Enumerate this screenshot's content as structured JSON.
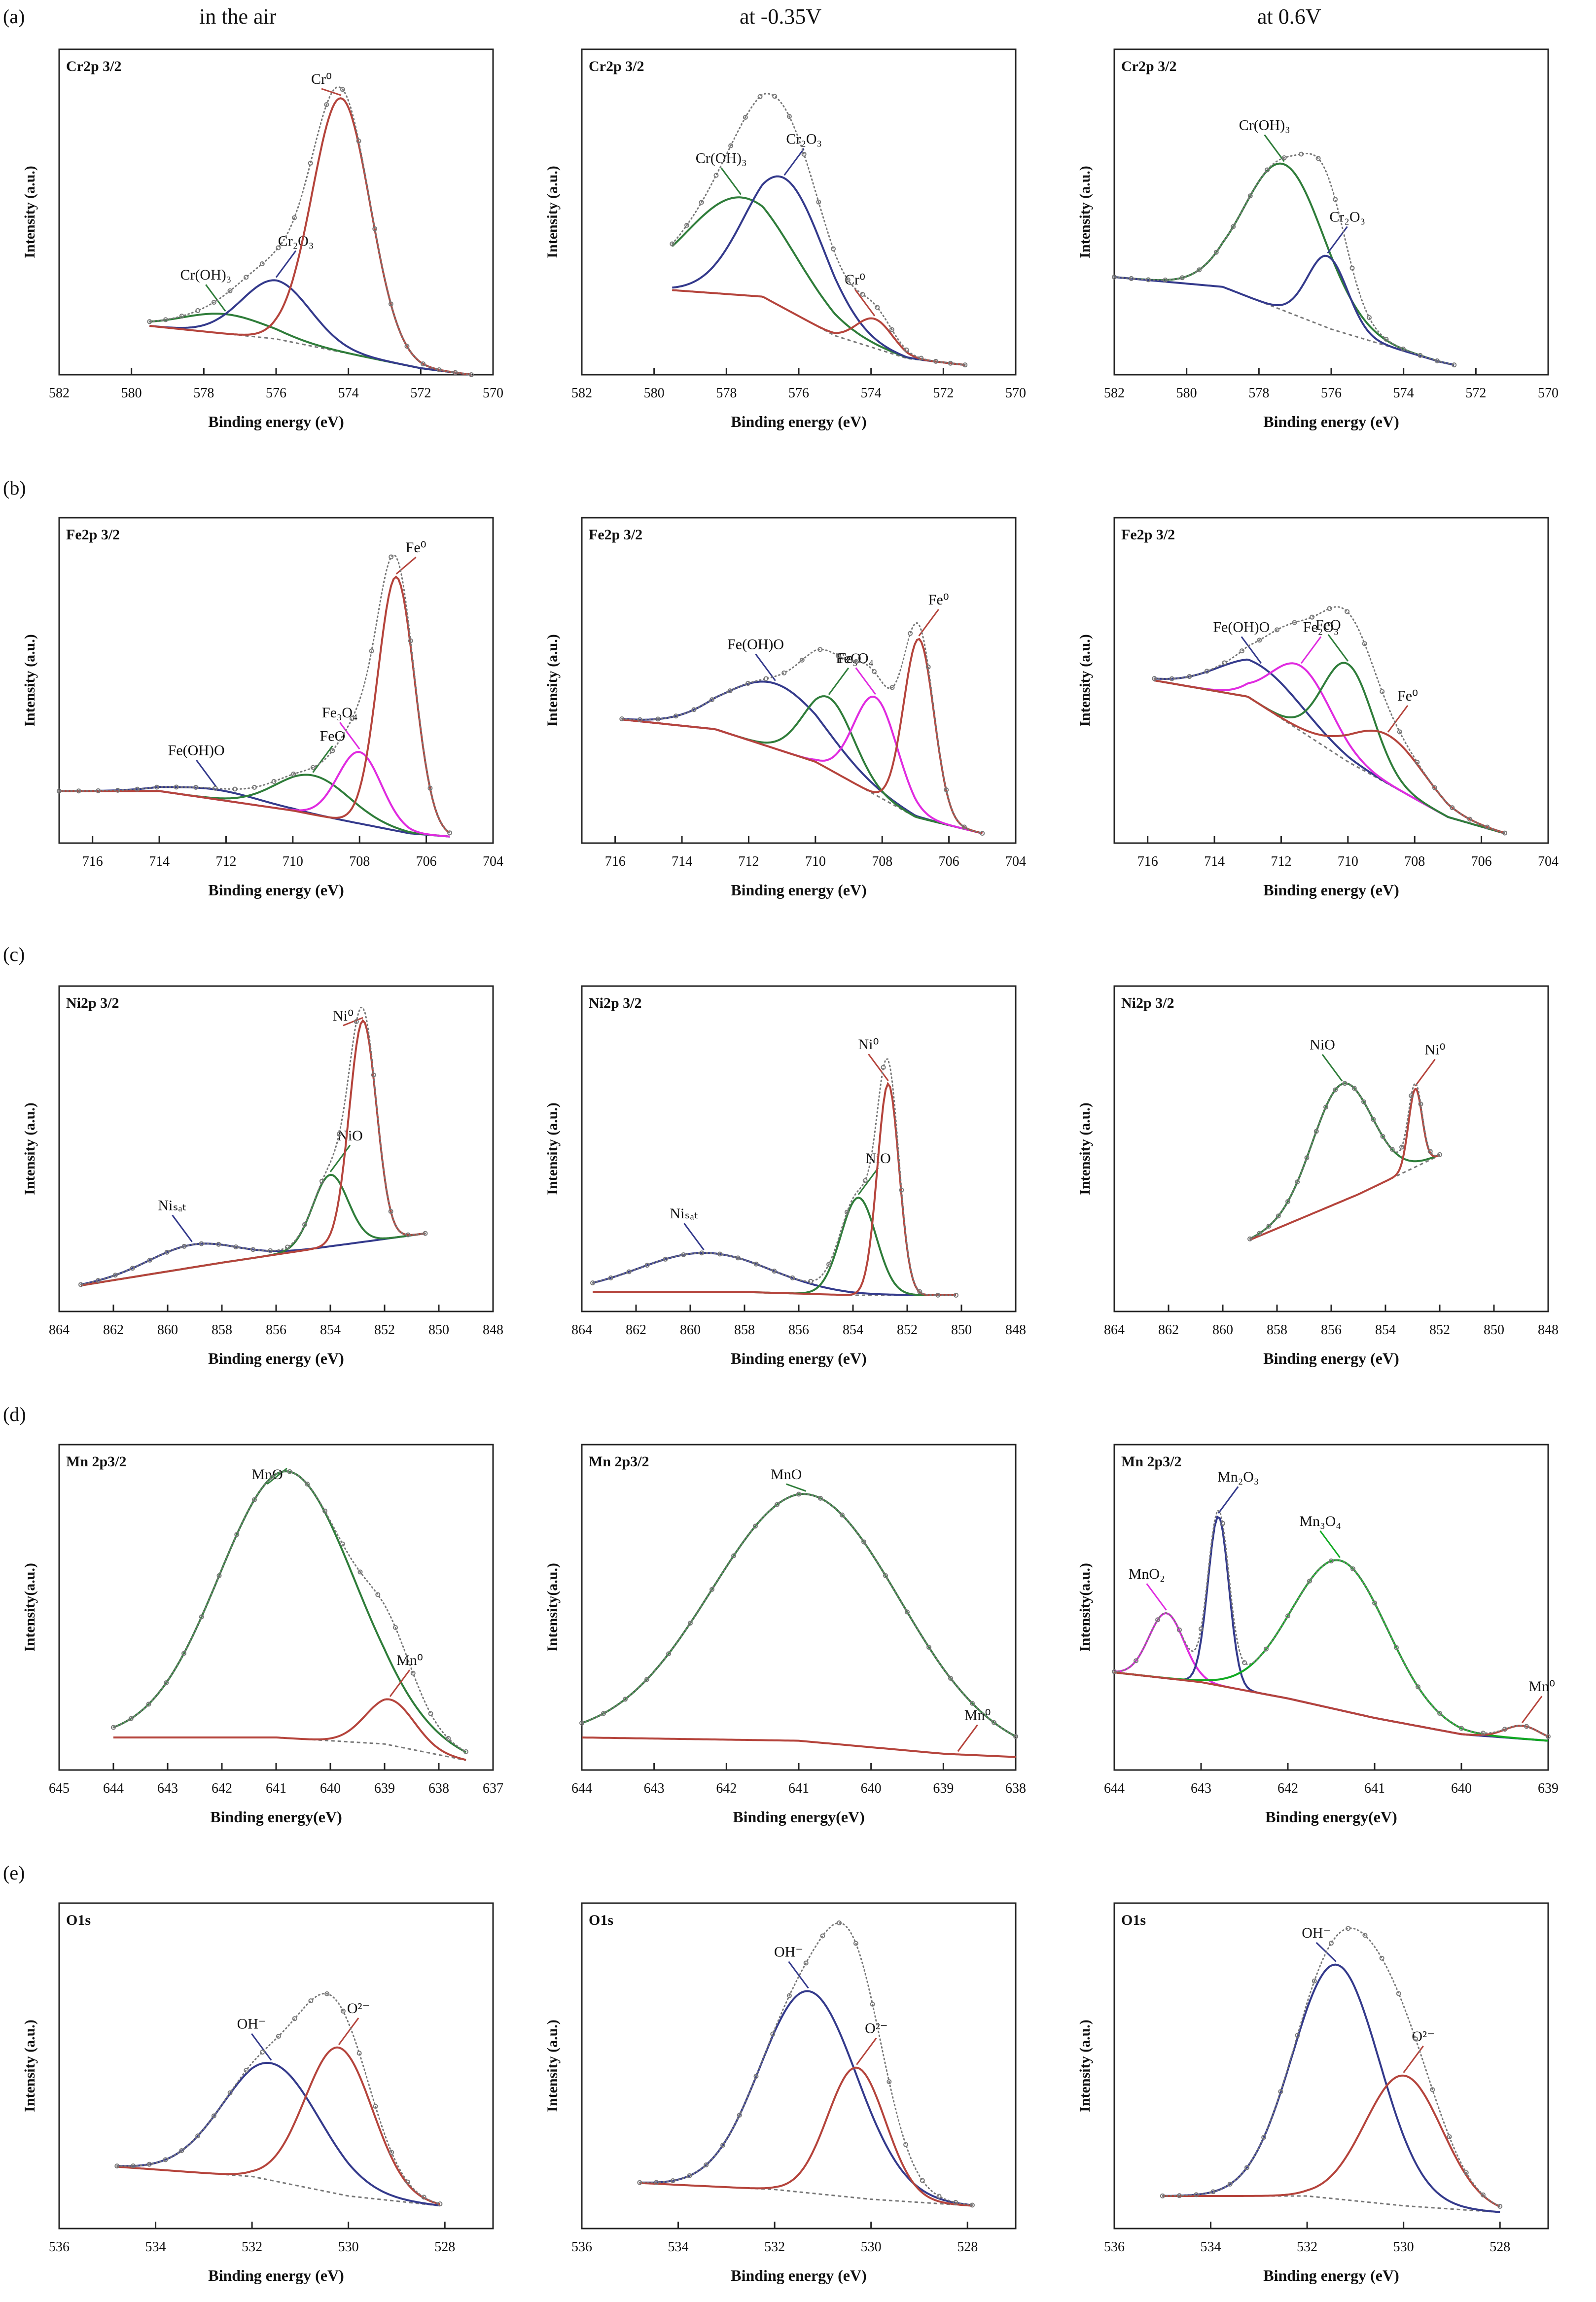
{
  "column_headers": [
    "in the air",
    "at -0.35V",
    "at 0.6V"
  ],
  "row_labels": [
    "(a)",
    "(b)",
    "(c)",
    "(d)",
    "(e)"
  ],
  "colors": {
    "red": "#b5443c",
    "blue": "#343a8c",
    "green": "#2f7d3a",
    "magenta": "#e02be0",
    "gray": "#777777",
    "black": "#111111",
    "lime": "#11aa22",
    "pinkred": "#e8303a",
    "arrow_red": "#c0392b"
  },
  "chart_data": [
    {
      "type": "line",
      "row": 0,
      "col": 0,
      "title": "Cr2p 3/2",
      "xlabel": "Binding energy (eV)",
      "ylabel": "Intensity (a.u.)",
      "xlim": [
        582,
        570
      ],
      "xticks": [
        582,
        580,
        578,
        576,
        574,
        572,
        570
      ],
      "baseline": [
        [
          579.5,
          0.15
        ],
        [
          576,
          0.11
        ],
        [
          572,
          0.02
        ],
        [
          570.6,
          0.0
        ]
      ],
      "peaks": [
        {
          "label": "Cr(OH)₃",
          "center": 577.4,
          "height": 0.06,
          "width": 1.2
        },
        {
          "label": "Cr₂O₃",
          "center": 576.0,
          "height": 0.18,
          "width": 0.95
        },
        {
          "label": "Cr⁰",
          "center": 574.2,
          "height": 0.78,
          "width": 0.8
        }
      ]
    },
    {
      "type": "line",
      "row": 0,
      "col": 1,
      "title": "Cr2p 3/2",
      "xlabel": "Binding energy (eV)",
      "ylabel": "Intensity (a.u.)",
      "xlim": [
        582,
        570
      ],
      "xticks": [
        582,
        580,
        578,
        576,
        574,
        572,
        570
      ],
      "baseline": [
        [
          579.5,
          0.26
        ],
        [
          577,
          0.24
        ],
        [
          575,
          0.12
        ],
        [
          573,
          0.05
        ],
        [
          571.4,
          0.03
        ]
      ],
      "peaks": [
        {
          "label": "Cr(OH)₃",
          "center": 577.6,
          "height": 0.3,
          "width": 1.5
        },
        {
          "label": "Cr₂O₃",
          "center": 576.4,
          "height": 0.4,
          "width": 1.1
        },
        {
          "label": "Cr⁰",
          "center": 573.9,
          "height": 0.09,
          "width": 0.5
        }
      ]
    },
    {
      "type": "line",
      "row": 0,
      "col": 2,
      "title": "Cr2p 3/2",
      "xlabel": "Binding energy (eV)",
      "ylabel": "Intensity (a.u.)",
      "xlim": [
        582,
        570
      ],
      "xticks": [
        582,
        580,
        578,
        576,
        574,
        572,
        570
      ],
      "baseline": [
        [
          582,
          0.3
        ],
        [
          579,
          0.27
        ],
        [
          576,
          0.14
        ],
        [
          573,
          0.04
        ],
        [
          572.6,
          0.03
        ]
      ],
      "peaks": [
        {
          "label": "Cr(OH)₃",
          "center": 577.3,
          "height": 0.45,
          "width": 1.1
        },
        {
          "label": "Cr₂O₃",
          "center": 576.1,
          "height": 0.22,
          "width": 0.55
        }
      ]
    },
    {
      "type": "line",
      "row": 1,
      "col": 0,
      "title": "Fe2p 3/2",
      "xlabel": "Binding energy (eV)",
      "ylabel": "Intensity (a.u.)",
      "xlim": [
        717,
        704
      ],
      "xticks": [
        716,
        714,
        712,
        710,
        708,
        706,
        704
      ],
      "baseline": [
        [
          717,
          0.16
        ],
        [
          714,
          0.16
        ],
        [
          710,
          0.1
        ],
        [
          706.5,
          0.03
        ],
        [
          705.3,
          0.02
        ]
      ],
      "peaks": [
        {
          "label": "Fe(OH)O",
          "center": 712.3,
          "height": 0.03,
          "width": 1.3
        },
        {
          "label": "FeO",
          "center": 709.4,
          "height": 0.12,
          "width": 1.1
        },
        {
          "label": "Fe₃O₄",
          "center": 708.0,
          "height": 0.22,
          "width": 0.65
        },
        {
          "label": "Fe⁰",
          "center": 706.9,
          "height": 0.78,
          "width": 0.55
        }
      ]
    },
    {
      "type": "line",
      "row": 1,
      "col": 1,
      "title": "Fe2p 3/2",
      "xlabel": "Binding energy (eV)",
      "ylabel": "Intensity (a.u.)",
      "xlim": [
        717,
        704
      ],
      "xticks": [
        716,
        714,
        712,
        710,
        708,
        706,
        704
      ],
      "baseline": [
        [
          715.8,
          0.38
        ],
        [
          713,
          0.35
        ],
        [
          710,
          0.25
        ],
        [
          707,
          0.08
        ],
        [
          705,
          0.03
        ]
      ],
      "peaks": [
        {
          "label": "Fe(OH)O",
          "center": 711.2,
          "height": 0.2,
          "width": 1.5
        },
        {
          "label": "FeO",
          "center": 709.6,
          "height": 0.22,
          "width": 0.75
        },
        {
          "label": "Fe₃O₄",
          "center": 708.2,
          "height": 0.3,
          "width": 0.65
        },
        {
          "label": "Fe⁰",
          "center": 706.9,
          "height": 0.55,
          "width": 0.45
        }
      ]
    },
    {
      "type": "line",
      "row": 1,
      "col": 2,
      "title": "Fe2p 3/2",
      "xlabel": "Binding energy (eV)",
      "ylabel": "Intensity (a.u.)",
      "xlim": [
        717,
        704
      ],
      "xticks": [
        716,
        714,
        712,
        710,
        708,
        706,
        704
      ],
      "baseline": [
        [
          715.8,
          0.5
        ],
        [
          713,
          0.45
        ],
        [
          710,
          0.25
        ],
        [
          707,
          0.08
        ],
        [
          705.3,
          0.03
        ]
      ],
      "peaks": [
        {
          "label": "Fe(OH)O",
          "center": 712.6,
          "height": 0.12,
          "width": 1.3
        },
        {
          "label": "Fe₂O₃",
          "center": 711.4,
          "height": 0.2,
          "width": 0.9
        },
        {
          "label": "FeO",
          "center": 710.0,
          "height": 0.3,
          "width": 0.75
        },
        {
          "label": "Fe⁰",
          "center": 708.8,
          "height": 0.15,
          "width": 1.1
        }
      ]
    },
    {
      "type": "line",
      "row": 2,
      "col": 0,
      "title": "Ni2p 3/2",
      "xlabel": "Binding energy (eV)",
      "ylabel": "Intensity (a.u.)",
      "xlim": [
        864,
        848
      ],
      "xticks": [
        864,
        862,
        860,
        858,
        856,
        854,
        852,
        850,
        848
      ],
      "baseline": [
        [
          863.2,
          0.08
        ],
        [
          858,
          0.15
        ],
        [
          854,
          0.2
        ],
        [
          850.5,
          0.24
        ]
      ],
      "peaks": [
        {
          "label": "Niₛₐₜ",
          "center": 859.1,
          "height": 0.07,
          "width": 1.6
        },
        {
          "label": "NiO",
          "center": 854.0,
          "height": 0.22,
          "width": 0.65
        },
        {
          "label": "Ni⁰",
          "center": 852.8,
          "height": 0.68,
          "width": 0.5
        }
      ]
    },
    {
      "type": "line",
      "row": 2,
      "col": 1,
      "title": "Ni2p 3/2",
      "xlabel": "Binding energy (eV)",
      "ylabel": "Intensity (a.u.)",
      "xlim": [
        864,
        848
      ],
      "xticks": [
        864,
        862,
        860,
        858,
        856,
        854,
        852,
        850,
        848
      ],
      "baseline": [
        [
          863.6,
          0.06
        ],
        [
          858,
          0.06
        ],
        [
          854,
          0.05
        ],
        [
          850.2,
          0.05
        ]
      ],
      "peaks": [
        {
          "label": "Niₛₐₜ",
          "center": 859.5,
          "height": 0.12,
          "width": 2.4
        },
        {
          "label": "NiO",
          "center": 853.8,
          "height": 0.3,
          "width": 0.65
        },
        {
          "label": "Ni⁰",
          "center": 852.7,
          "height": 0.65,
          "width": 0.4
        }
      ]
    },
    {
      "type": "line",
      "row": 2,
      "col": 2,
      "title": "Ni2p 3/2",
      "xlabel": "Binding energy (eV)",
      "ylabel": "Intensity (a.u.)",
      "xlim": [
        864,
        848
      ],
      "xticks": [
        864,
        862,
        860,
        858,
        856,
        854,
        852,
        850,
        848
      ],
      "baseline": [
        [
          859,
          0.22
        ],
        [
          855,
          0.36
        ],
        [
          852,
          0.48
        ]
      ],
      "peaks": [
        {
          "label": "NiO",
          "center": 855.6,
          "height": 0.36,
          "width": 1.1
        },
        {
          "label": "Ni⁰",
          "center": 852.9,
          "height": 0.24,
          "width": 0.25
        }
      ]
    },
    {
      "type": "line",
      "row": 3,
      "col": 0,
      "title": "Mn 2p3/2",
      "xlabel": "Binding energy(eV)",
      "ylabel": "Intensity(a.u.)",
      "xlim": [
        645,
        637
      ],
      "xticks": [
        645,
        644,
        643,
        642,
        641,
        640,
        639,
        638,
        637
      ],
      "baseline": [
        [
          644,
          0.1
        ],
        [
          641,
          0.1
        ],
        [
          639,
          0.08
        ],
        [
          637.5,
          0.03
        ]
      ],
      "peaks": [
        {
          "label": "MnO",
          "center": 640.8,
          "height": 0.82,
          "width": 1.25
        },
        {
          "label": "Mn⁰",
          "center": 638.9,
          "height": 0.14,
          "width": 0.45
        }
      ]
    },
    {
      "type": "line",
      "row": 3,
      "col": 1,
      "title": "Mn 2p3/2",
      "xlabel": "Binding energy(eV)",
      "ylabel": "Intensity(a.u.)",
      "xlim": [
        644,
        638
      ],
      "xticks": [
        644,
        643,
        642,
        641,
        640,
        639,
        638
      ],
      "baseline": [
        [
          644,
          0.1
        ],
        [
          641,
          0.09
        ],
        [
          639,
          0.05
        ],
        [
          638,
          0.04
        ]
      ],
      "peaks": [
        {
          "label": "MnO",
          "center": 640.9,
          "height": 0.76,
          "width": 1.3
        },
        {
          "label": "Mn⁰",
          "center": 638.8,
          "height": 0.0,
          "width": 0.3
        }
      ]
    },
    {
      "type": "line",
      "row": 3,
      "col": 2,
      "title": "Mn 2p3/2",
      "xlabel": "Binding energy(eV)",
      "ylabel": "Intensity(a.u.)",
      "xlim": [
        644,
        639
      ],
      "xticks": [
        644,
        643,
        642,
        641,
        640,
        639
      ],
      "baseline": [
        [
          644,
          0.3
        ],
        [
          643,
          0.27
        ],
        [
          642,
          0.22
        ],
        [
          641,
          0.16
        ],
        [
          640,
          0.11
        ],
        [
          639,
          0.09
        ]
      ],
      "peaks": [
        {
          "label": "MnO₂",
          "center": 643.4,
          "height": 0.2,
          "width": 0.2
        },
        {
          "label": "Mn₂O₃",
          "center": 642.8,
          "height": 0.52,
          "width": 0.12
        },
        {
          "label": "Mn₃O₄",
          "center": 641.4,
          "height": 0.46,
          "width": 0.55
        },
        {
          "label": "Mn⁰",
          "center": 639.3,
          "height": 0.04,
          "width": 0.2
        }
      ]
    },
    {
      "type": "line",
      "row": 4,
      "col": 0,
      "title": "O1s",
      "xlabel": "Binding energy (eV)",
      "ylabel": "Intensity (a.u.)",
      "xlim": [
        536,
        527
      ],
      "xticks": [
        536,
        534,
        532,
        530,
        528
      ],
      "baseline": [
        [
          534.8,
          0.19
        ],
        [
          532,
          0.16
        ],
        [
          530,
          0.1
        ],
        [
          528.1,
          0.07
        ]
      ],
      "peaks": [
        {
          "label": "OH⁻",
          "center": 531.6,
          "height": 0.36,
          "width": 1.0
        },
        {
          "label": "O²⁻",
          "center": 530.2,
          "height": 0.45,
          "width": 0.7
        }
      ]
    },
    {
      "type": "line",
      "row": 4,
      "col": 1,
      "title": "O1s",
      "xlabel": "Binding energy (eV)",
      "ylabel": "Intensity (a.u.)",
      "xlim": [
        536,
        527
      ],
      "xticks": [
        536,
        534,
        532,
        530,
        528
      ],
      "baseline": [
        [
          534.8,
          0.14
        ],
        [
          532,
          0.12
        ],
        [
          530,
          0.09
        ],
        [
          527.9,
          0.07
        ]
      ],
      "peaks": [
        {
          "label": "OH⁻",
          "center": 531.3,
          "height": 0.62,
          "width": 1.0
        },
        {
          "label": "O²⁻",
          "center": 530.3,
          "height": 0.4,
          "width": 0.6
        }
      ]
    },
    {
      "type": "line",
      "row": 4,
      "col": 2,
      "title": "O1s",
      "xlabel": "Binding energy (eV)",
      "ylabel": "Intensity (a.u.)",
      "xlim": [
        536,
        527
      ],
      "xticks": [
        536,
        534,
        532,
        530,
        528
      ],
      "baseline": [
        [
          535,
          0.1
        ],
        [
          532,
          0.1
        ],
        [
          530,
          0.07
        ],
        [
          528,
          0.05
        ]
      ],
      "peaks": [
        {
          "label": "OH⁻",
          "center": 531.4,
          "height": 0.72,
          "width": 0.9
        },
        {
          "label": "O²⁻",
          "center": 530.0,
          "height": 0.4,
          "width": 0.8
        }
      ]
    }
  ]
}
